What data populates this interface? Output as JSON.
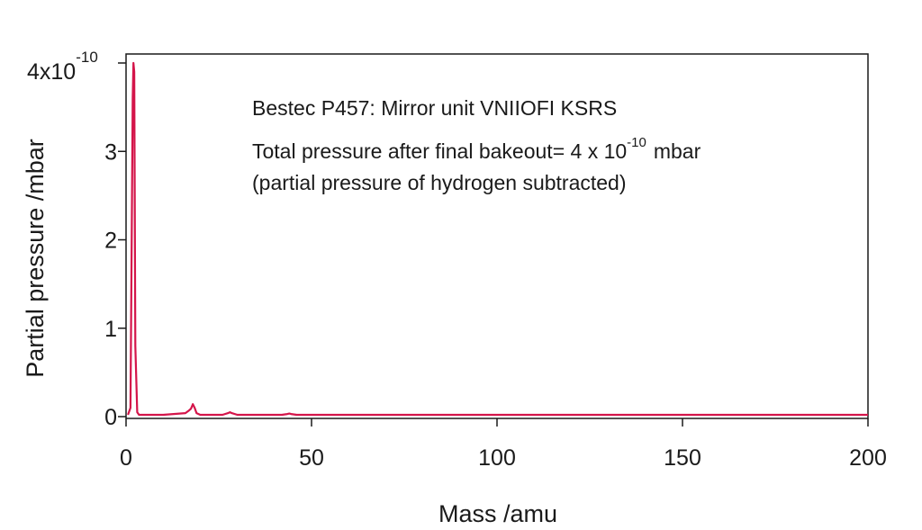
{
  "chart_data": {
    "type": "line",
    "xlabel": "Mass /amu",
    "ylabel": "Partial pressure /mbar",
    "xlim": [
      0,
      200
    ],
    "ylim": [
      0,
      4
    ],
    "x_ticks": [
      {
        "value": 0,
        "label": "0"
      },
      {
        "value": 50,
        "label": "50"
      },
      {
        "value": 100,
        "label": "100"
      },
      {
        "value": 150,
        "label": "150"
      },
      {
        "value": 200,
        "label": "200"
      }
    ],
    "y_ticks": [
      {
        "value": 0,
        "label": "0"
      },
      {
        "value": 1,
        "label": "1"
      },
      {
        "value": 2,
        "label": "2"
      },
      {
        "value": 3,
        "label": "3"
      },
      {
        "value": 4,
        "label": "4x10",
        "exponent": "-10"
      }
    ],
    "grid": false,
    "series_color": "#d4154a",
    "annotations": {
      "line1": "Bestec P457: Mirror unit VNIIOFI KSRS",
      "line2_prefix": "Total pressure after final bakeout= 4 x 10",
      "line2_exponent": "-10",
      "line2_suffix": "mbar",
      "line3": "(partial pressure of hydrogen subtracted)"
    },
    "series": [
      {
        "x": [
          0.5,
          1.2,
          1.5,
          1.8,
          2.0,
          2.2,
          2.5,
          3.0,
          3.5,
          4,
          10,
          16,
          17,
          17.5,
          18,
          18.5,
          19,
          20,
          26,
          27.5,
          28,
          28.5,
          30,
          42,
          43.5,
          44,
          44.5,
          46,
          100,
          150,
          200
        ],
        "y": [
          0.02,
          0.1,
          1.9,
          3.6,
          4.0,
          3.9,
          0.8,
          0.05,
          0.02,
          0.02,
          0.02,
          0.04,
          0.07,
          0.09,
          0.14,
          0.1,
          0.04,
          0.02,
          0.02,
          0.04,
          0.05,
          0.04,
          0.02,
          0.02,
          0.03,
          0.035,
          0.03,
          0.02,
          0.02,
          0.02,
          0.02
        ]
      }
    ]
  }
}
